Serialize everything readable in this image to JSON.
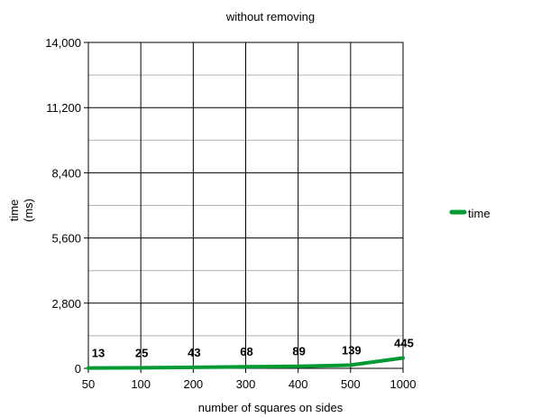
{
  "chart_data": {
    "type": "line",
    "title": "without removing",
    "xlabel": "number of squares on sides",
    "ylabel_lines": [
      "time",
      "(ms)"
    ],
    "categories": [
      "50",
      "100",
      "200",
      "300",
      "400",
      "500",
      "1000"
    ],
    "y_ticks": [
      "0",
      "2,800",
      "5,600",
      "8,400",
      "11,200",
      "14,000"
    ],
    "y_tick_values": [
      0,
      2800,
      5600,
      8400,
      11200,
      14000
    ],
    "ylim": [
      0,
      14000
    ],
    "grid": true,
    "legend_position": "right",
    "series": [
      {
        "name": "time",
        "values": [
          13,
          25,
          43,
          68,
          89,
          139,
          445
        ],
        "color": "#009933"
      }
    ]
  }
}
